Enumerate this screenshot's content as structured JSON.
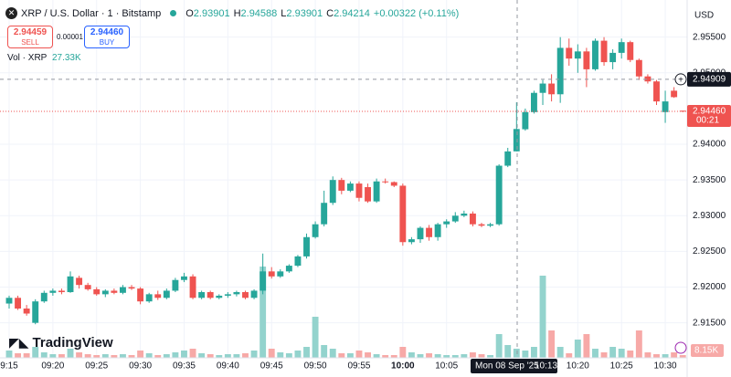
{
  "header": {
    "symbol": "XRP / U.S. Dollar · 1 · Bitstamp",
    "ohlc": [
      {
        "label": "O",
        "value": "2.93901"
      },
      {
        "label": "H",
        "value": "2.94588"
      },
      {
        "label": "L",
        "value": "2.93901"
      },
      {
        "label": "C",
        "value": "2.94214"
      }
    ],
    "change": "+0.00322 (+0.11%)"
  },
  "trade": {
    "sell_price": "2.94459",
    "sell": "SELL",
    "spread": "0.00001",
    "buy_price": "2.94460",
    "buy": "BUY"
  },
  "volume_legend": {
    "label": "Vol · XRP",
    "value": "27.33K"
  },
  "logo": "TradingView",
  "chart_data": {
    "type": "candlestick",
    "categories": [
      "9:15",
      null,
      null,
      null,
      null,
      "09:20",
      null,
      null,
      null,
      null,
      "09:25",
      null,
      null,
      null,
      null,
      "09:30",
      null,
      null,
      null,
      null,
      "09:35",
      null,
      null,
      null,
      null,
      "09:40",
      null,
      null,
      null,
      null,
      "09:45",
      null,
      null,
      null,
      null,
      "09:50",
      null,
      null,
      null,
      null,
      "09:55",
      null,
      null,
      null,
      null,
      "10:00",
      null,
      null,
      null,
      null,
      "10:05",
      null,
      null,
      null,
      null,
      null,
      null,
      null,
      null,
      null,
      null,
      null,
      null,
      null,
      null,
      "10:20",
      null,
      null,
      null,
      null,
      "10:25",
      null,
      null,
      null,
      null,
      "10:30",
      null,
      null
    ],
    "open": [
      2.9177,
      2.9185,
      2.917,
      2.915,
      2.918,
      2.9192,
      2.9195,
      2.9193,
      2.9213,
      2.9203,
      2.9197,
      2.919,
      2.9195,
      2.9192,
      2.92,
      2.9198,
      2.918,
      2.919,
      2.9185,
      2.9195,
      2.921,
      2.9215,
      2.9185,
      2.9193,
      2.9185,
      2.9188,
      2.919,
      2.9193,
      2.9185,
      2.9195,
      2.9222,
      2.9215,
      2.9222,
      2.923,
      2.9243,
      2.927,
      2.9288,
      2.9318,
      2.935,
      2.9335,
      2.9345,
      2.934,
      2.932,
      2.9348,
      2.9347,
      2.9342,
      2.9263,
      2.9267,
      2.9283,
      2.927,
      2.9288,
      2.9292,
      2.93,
      2.9303,
      2.9288,
      2.9286,
      2.9288,
      2.937,
      2.93901,
      2.9421,
      2.9445,
      2.9472,
      2.9485,
      2.947,
      2.9535,
      2.952,
      2.953,
      2.9505,
      2.9545,
      2.9515,
      2.9528,
      2.9543,
      2.9518,
      2.9495,
      2.9488,
      2.9445,
      2.9475,
      2.9447
    ],
    "high": [
      2.9188,
      2.9188,
      2.9175,
      2.9183,
      2.9195,
      2.9198,
      2.9198,
      2.9222,
      2.9216,
      2.9206,
      2.92,
      2.9197,
      2.9198,
      2.9203,
      2.9203,
      2.92,
      2.9192,
      2.9195,
      2.9198,
      2.9213,
      2.922,
      2.9218,
      2.9195,
      2.9195,
      2.919,
      2.9193,
      2.9195,
      2.9195,
      2.9197,
      2.9247,
      2.9228,
      2.9225,
      2.9232,
      2.9245,
      2.9275,
      2.9292,
      2.9335,
      2.9355,
      2.9353,
      2.9348,
      2.9348,
      2.9345,
      2.9352,
      2.9352,
      2.9348,
      2.9345,
      2.927,
      2.9285,
      2.9287,
      2.929,
      2.9295,
      2.9305,
      2.9307,
      2.9306,
      2.929,
      2.929,
      2.9372,
      2.9395,
      2.94588,
      2.945,
      2.9475,
      2.949,
      2.9498,
      2.955,
      2.9548,
      2.954,
      2.9535,
      2.9548,
      2.955,
      2.9533,
      2.9548,
      2.9545,
      2.952,
      2.9498,
      2.949,
      2.9475,
      2.948,
      2.9447
    ],
    "low": [
      2.917,
      2.9168,
      2.916,
      2.9148,
      2.9178,
      2.9188,
      2.919,
      2.9192,
      2.9198,
      2.9195,
      2.9188,
      2.9186,
      2.919,
      2.919,
      2.9196,
      2.9176,
      2.9178,
      2.9182,
      2.9183,
      2.9193,
      2.9207,
      2.9183,
      2.9183,
      2.9183,
      2.9183,
      2.9185,
      2.9187,
      2.9183,
      2.9183,
      2.919,
      2.9212,
      2.9213,
      2.922,
      2.9228,
      2.924,
      2.9268,
      2.9285,
      2.9315,
      2.933,
      2.9333,
      2.932,
      2.9318,
      2.9318,
      2.9345,
      2.934,
      2.9258,
      2.926,
      2.9262,
      2.9265,
      2.9265,
      2.9283,
      2.929,
      2.9298,
      2.9285,
      2.9284,
      2.9284,
      2.9286,
      2.9368,
      2.93901,
      2.9419,
      2.9443,
      2.9455,
      2.946,
      2.9458,
      2.951,
      2.95,
      2.948,
      2.9503,
      2.951,
      2.9505,
      2.952,
      2.9515,
      2.949,
      2.9485,
      2.9455,
      2.943,
      2.9465,
      2.9445
    ],
    "close": [
      2.9185,
      2.917,
      2.9163,
      2.918,
      2.9192,
      2.9195,
      2.9193,
      2.9215,
      2.9203,
      2.9197,
      2.919,
      2.9195,
      2.9192,
      2.92,
      2.9198,
      2.918,
      2.919,
      2.9185,
      2.9195,
      2.921,
      2.9215,
      2.9185,
      2.9193,
      2.9185,
      2.9188,
      2.919,
      2.9193,
      2.9185,
      2.9195,
      2.9222,
      2.9215,
      2.9222,
      2.923,
      2.9243,
      2.927,
      2.9288,
      2.9318,
      2.935,
      2.9335,
      2.9345,
      2.9325,
      2.932,
      2.9348,
      2.9347,
      2.9342,
      2.9263,
      2.9267,
      2.9283,
      2.927,
      2.9288,
      2.9292,
      2.93,
      2.9303,
      2.9288,
      2.9286,
      2.9288,
      2.937,
      2.939,
      2.94214,
      2.9445,
      2.9472,
      2.9485,
      2.947,
      2.9535,
      2.952,
      2.953,
      2.9505,
      2.9545,
      2.9515,
      2.9528,
      2.9543,
      2.9518,
      2.9495,
      2.9488,
      2.946,
      2.946,
      2.9466,
      2.9446
    ],
    "volume": [
      21900,
      13700,
      13700,
      32800,
      16400,
      10900,
      10900,
      27300,
      16400,
      10900,
      8200,
      10900,
      8200,
      10900,
      8200,
      21900,
      13700,
      8200,
      10900,
      16400,
      21900,
      27300,
      13700,
      10900,
      8200,
      10900,
      10900,
      13700,
      21900,
      273300,
      27300,
      16400,
      13700,
      21900,
      32800,
      123000,
      38300,
      27300,
      13700,
      13700,
      21900,
      16400,
      10900,
      8200,
      8200,
      32800,
      16400,
      10900,
      13700,
      10900,
      8200,
      8200,
      10900,
      16400,
      10900,
      8200,
      71100,
      38300,
      27330,
      21900,
      32800,
      246000,
      82000,
      32800,
      13700,
      54700,
      71100,
      27300,
      16400,
      32800,
      27300,
      21900,
      82000,
      16400,
      10900,
      10900,
      16400,
      8150
    ],
    "up_color": "#26a69a",
    "down_color": "#ef5350",
    "up_volume_color": "#93d3cd",
    "down_volume_color": "#f7a9a7",
    "ylim": [
      2.9101,
      2.9602
    ],
    "yticks": [
      {
        "value": 2.955,
        "label": "2.95500"
      },
      {
        "value": 2.95,
        "label": "2.95000"
      },
      {
        "value": 2.94,
        "label": "2.94000"
      },
      {
        "value": 2.935,
        "label": "2.93500"
      },
      {
        "value": 2.93,
        "label": "2.93000"
      },
      {
        "value": 2.925,
        "label": "2.92500"
      },
      {
        "value": 2.92,
        "label": "2.92000"
      },
      {
        "value": 2.915,
        "label": "2.91500"
      }
    ],
    "grid": true,
    "y_axis_label": "USD",
    "crosshair": {
      "price": {
        "value": 2.94909,
        "label": "2.94909"
      },
      "date": "Mon 08 Sep '25",
      "time": "10:13"
    },
    "last_price": {
      "value": 2.9446,
      "label": "2.94460"
    },
    "countdown": "00:21",
    "last_volume_label": "8.15K"
  }
}
